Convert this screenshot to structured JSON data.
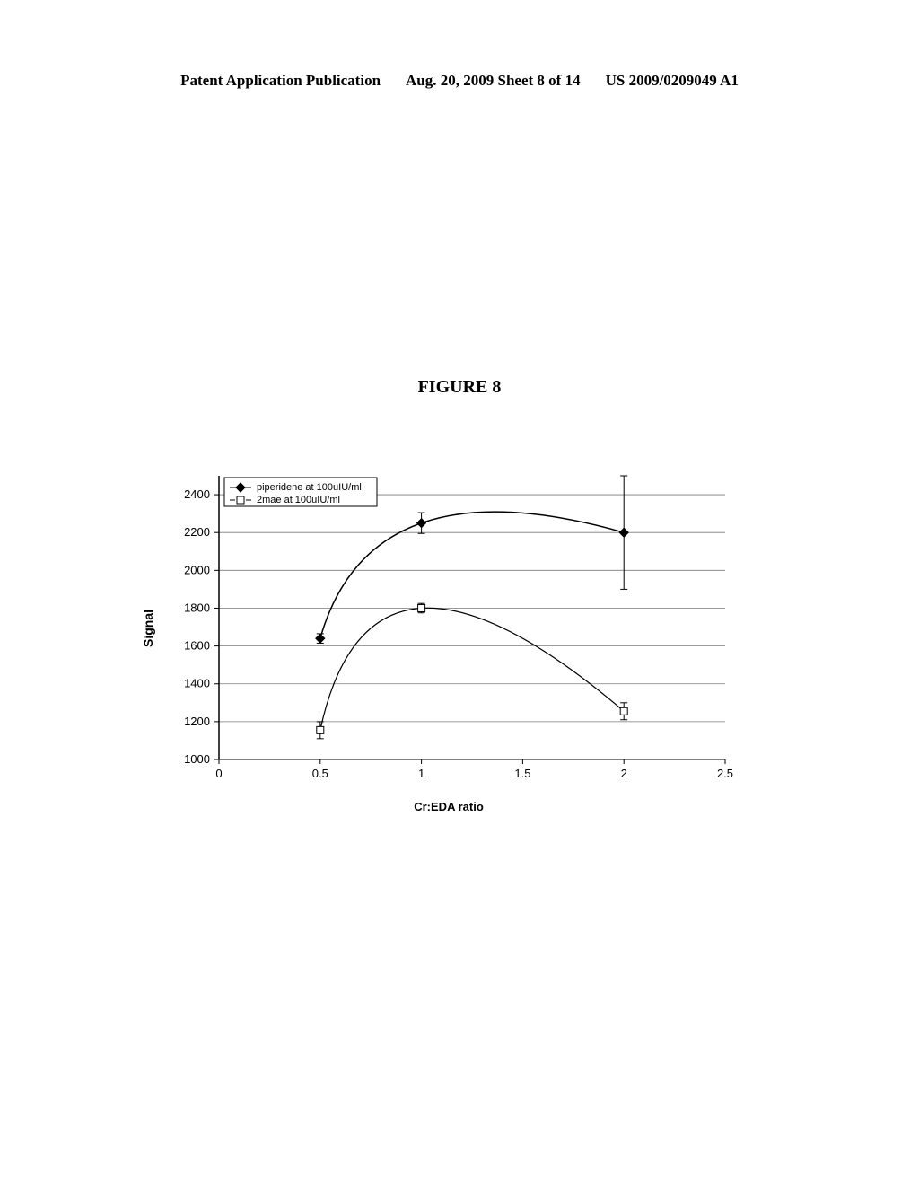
{
  "header": {
    "left": "Patent Application Publication",
    "center": "Aug. 20, 2009  Sheet 8 of 14",
    "right": "US 2009/0209049 A1"
  },
  "figure_title": "FIGURE 8",
  "chart": {
    "type": "line",
    "background_color": "#ffffff",
    "grid_color": "#7a7a7a",
    "axis_color": "#000000",
    "ylabel": "Signal",
    "xlabel": "Cr:EDA ratio",
    "label_fontsize": 13,
    "tick_fontsize": 13,
    "xlim": [
      0,
      2.5
    ],
    "ylim": [
      1000,
      2500
    ],
    "xticks": [
      0,
      0.5,
      1,
      1.5,
      2,
      2.5
    ],
    "yticks": [
      1000,
      1200,
      1400,
      1600,
      1800,
      2000,
      2200,
      2400
    ],
    "series": [
      {
        "name": "piperidene at 100uIU/ml",
        "marker": "diamond",
        "marker_fill": "#000000",
        "line_color": "#000000",
        "line_width": 1.5,
        "x": [
          0.5,
          1,
          2
        ],
        "y": [
          1640,
          2250,
          2200
        ],
        "yerr": [
          25,
          55,
          300
        ]
      },
      {
        "name": "2mae at 100uIU/ml",
        "marker": "square",
        "marker_fill": "#ffffff",
        "marker_stroke": "#000000",
        "line_color": "#000000",
        "line_width": 1.2,
        "x": [
          0.5,
          1,
          2
        ],
        "y": [
          1155,
          1800,
          1255
        ],
        "yerr": [
          45,
          25,
          45
        ]
      }
    ],
    "legend": {
      "position": "top-left-inside",
      "items": [
        "piperidene at 100uIU/ml",
        "2mae at 100uIU/ml"
      ]
    }
  }
}
